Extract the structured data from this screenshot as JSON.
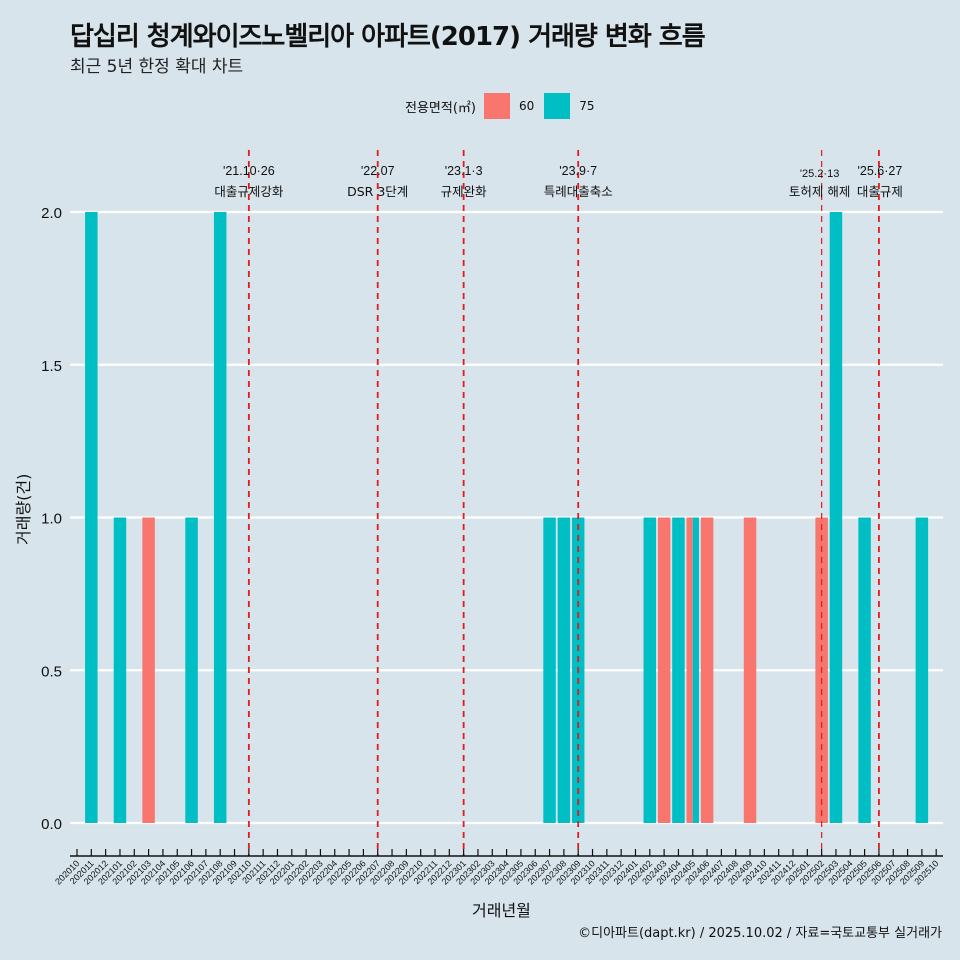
{
  "chart_data": {
    "type": "bar",
    "title": "답십리 청계와이즈노벨리아 아파트(2017) 거래량 변화 흐름",
    "subtitle": "최근 5년 한정 확대 차트",
    "xlabel": "거래년월",
    "ylabel": "거래량(건)",
    "ylim": [
      0,
      2
    ],
    "yticks": [
      "0.0",
      "0.5",
      "1.0",
      "1.5",
      "2.0"
    ],
    "ytick_values": [
      0,
      0.5,
      1.0,
      1.5,
      2.0
    ],
    "legend": {
      "title": "전용면적(㎡)",
      "placement": "top",
      "entries": [
        {
          "name": "60",
          "color": "#F8766D"
        },
        {
          "name": "75",
          "color": "#00BFC4"
        }
      ]
    },
    "categories": [
      "202010",
      "202011",
      "202012",
      "202101",
      "202102",
      "202103",
      "202104",
      "202105",
      "202106",
      "202107",
      "202108",
      "202109",
      "202110",
      "202111",
      "202112",
      "202201",
      "202202",
      "202203",
      "202204",
      "202205",
      "202206",
      "202207",
      "202208",
      "202209",
      "202210",
      "202211",
      "202212",
      "202301",
      "202302",
      "202303",
      "202304",
      "202305",
      "202306",
      "202307",
      "202308",
      "202309",
      "202310",
      "202311",
      "202312",
      "202401",
      "202402",
      "202403",
      "202404",
      "202405",
      "202406",
      "202407",
      "202408",
      "202409",
      "202410",
      "202411",
      "202412",
      "202501",
      "202502",
      "202503",
      "202504",
      "202505",
      "202506",
      "202507",
      "202508",
      "202509",
      "202510"
    ],
    "bars": [
      {
        "month": "202011",
        "area": "75",
        "value": 2
      },
      {
        "month": "202101",
        "area": "75",
        "value": 1
      },
      {
        "month": "202103",
        "area": "60",
        "value": 1
      },
      {
        "month": "202106",
        "area": "75",
        "value": 1
      },
      {
        "month": "202108",
        "area": "75",
        "value": 2
      },
      {
        "month": "202307",
        "area": "75",
        "value": 1
      },
      {
        "month": "202308",
        "area": "75",
        "value": 1
      },
      {
        "month": "202309",
        "area": "75",
        "value": 1
      },
      {
        "month": "202402",
        "area": "75",
        "value": 1
      },
      {
        "month": "202403",
        "area": "60",
        "value": 1
      },
      {
        "month": "202404",
        "area": "75",
        "value": 1
      },
      {
        "month": "202405",
        "area": "60",
        "value": 1,
        "dodge": "left"
      },
      {
        "month": "202405",
        "area": "75",
        "value": 1,
        "dodge": "right"
      },
      {
        "month": "202406",
        "area": "60",
        "value": 1
      },
      {
        "month": "202409",
        "area": "60",
        "value": 1
      },
      {
        "month": "202502",
        "area": "60",
        "value": 1
      },
      {
        "month": "202503",
        "area": "75",
        "value": 2
      },
      {
        "month": "202505",
        "area": "75",
        "value": 1
      },
      {
        "month": "202509",
        "area": "75",
        "value": 1
      }
    ],
    "events": [
      {
        "date": "'21.10·26",
        "label": "대출규제강화",
        "month": "202110"
      },
      {
        "date": "'22.07",
        "label": "DSR 3단계",
        "month": "202207"
      },
      {
        "date": "'23.1·3",
        "label": "규제완화",
        "month": "202301"
      },
      {
        "date": "'23.9·7",
        "label": "특례대출축소",
        "month": "202309"
      },
      {
        "date": "'25.2·13",
        "label": "토허제 해제",
        "month": "202502"
      },
      {
        "date": "'25.6·27",
        "label": "대출규제",
        "month": "202506"
      }
    ],
    "event_line_color": "#e41a1c",
    "grid": true
  },
  "footer": "©디아파트(dapt.kr) / 2025.10.02 / 자료=국토교통부 실거래가"
}
